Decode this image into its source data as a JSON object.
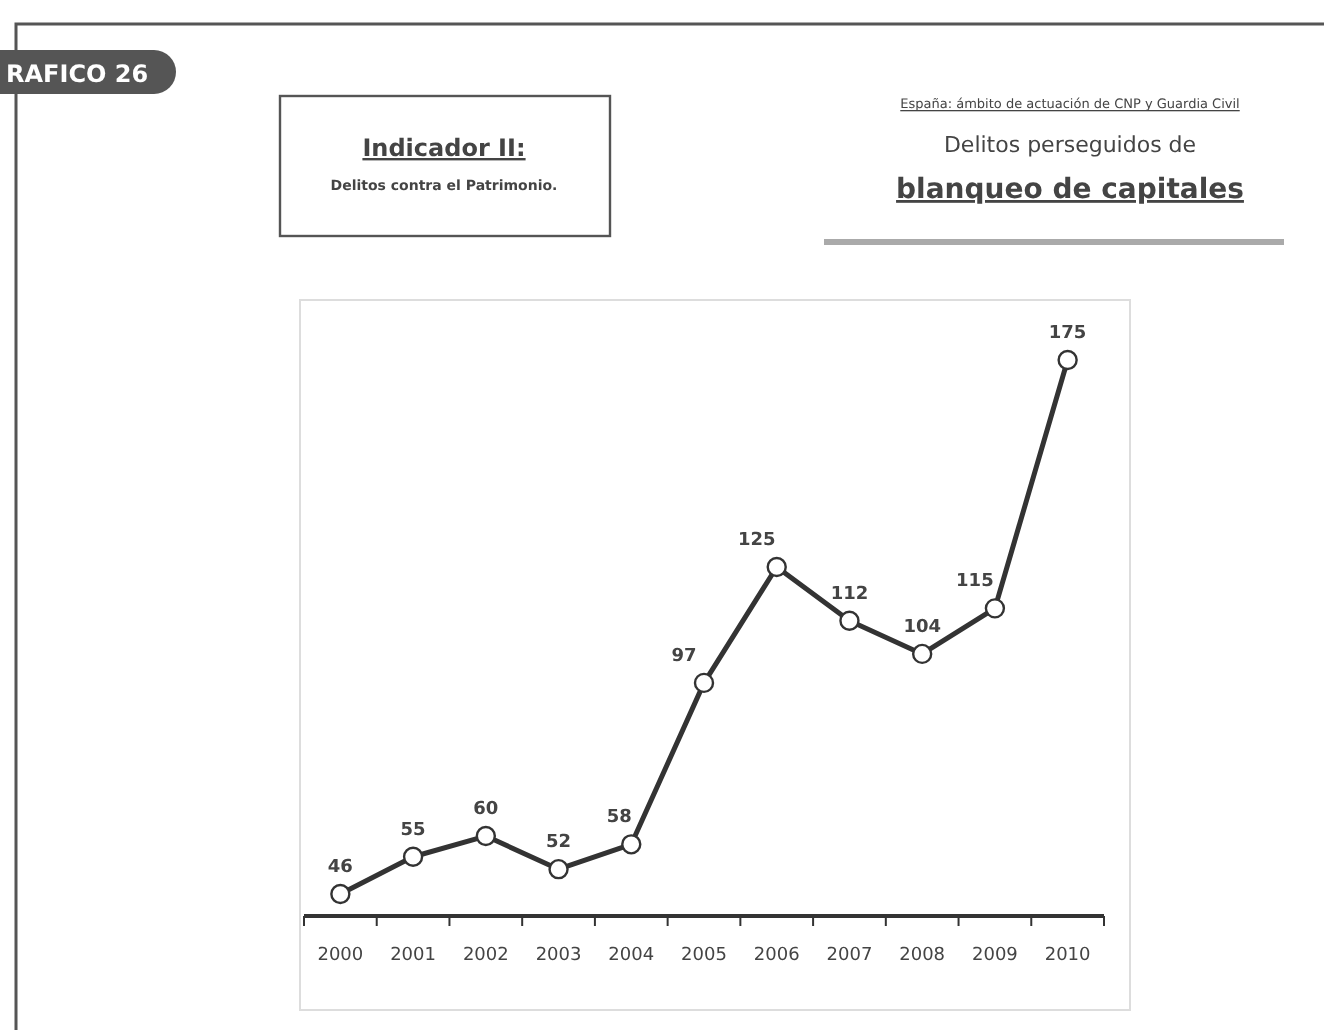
{
  "chart_data": {
    "type": "line",
    "title": "Delitos perseguidos de\nblanqueo de capitales",
    "subtitle": "España: ámbito de actuación de CNP y Guardia Civil",
    "annotations": [
      "RAFICO 26",
      "Indicador II:",
      "Delitos contra el Patrimonio."
    ],
    "categories": [
      "2000",
      "2001",
      "2002",
      "2003",
      "2004",
      "2005",
      "2006",
      "2007",
      "2008",
      "2009",
      "2010"
    ],
    "series": [
      {
        "color": "#333333",
        "values": [
          46,
          55,
          60,
          52,
          58,
          97,
          125,
          112,
          104,
          115,
          175
        ]
      }
    ],
    "data_labels": true,
    "marker": "circle",
    "line_style": "solid"
  }
}
